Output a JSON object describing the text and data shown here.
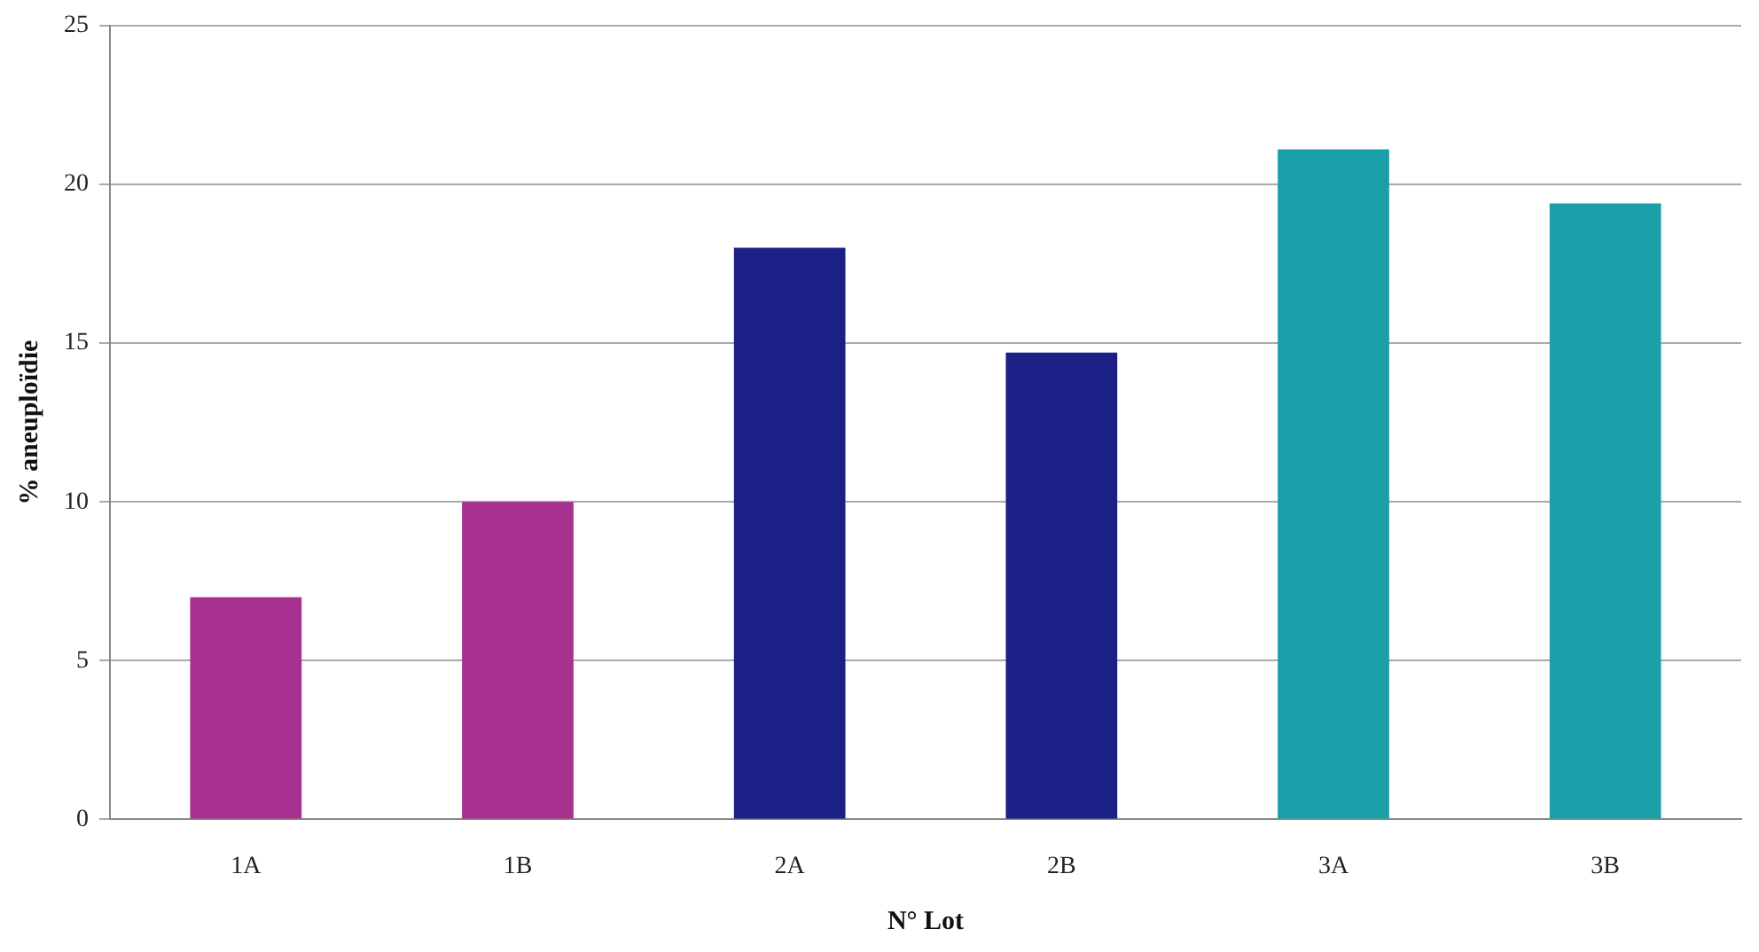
{
  "chart_data": {
    "type": "bar",
    "xlabel": "N° Lot",
    "ylabel": "% aneuploïdie",
    "categories": [
      "1A",
      "1B",
      "2A",
      "2B",
      "3A",
      "3B"
    ],
    "values": [
      7,
      10,
      18,
      14.7,
      21.1,
      19.4
    ],
    "colors": [
      "#a8308f",
      "#a8308f",
      "#1b1f86",
      "#1b1f86",
      "#1ba0a9",
      "#1ba0a9"
    ],
    "ylim": [
      0,
      25
    ],
    "yticks": [
      0,
      5,
      10,
      15,
      20,
      25
    ],
    "grid": "y",
    "legend": false
  }
}
